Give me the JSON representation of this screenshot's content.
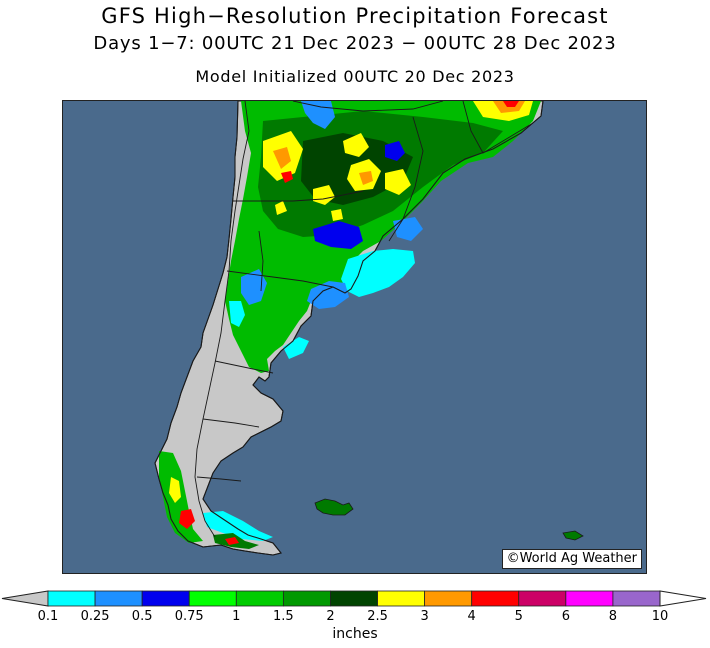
{
  "title": "GFS High−Resolution Precipitation Forecast",
  "subtitle": "Days 1−7: 00UTC 21 Dec 2023 − 00UTC 28 Dec 2023",
  "init_line": "Model Initialized 00UTC 20 Dec 2023",
  "credit": "©World Ag Weather",
  "legend": {
    "units": "inches",
    "ticks": [
      "0.1",
      "0.25",
      "0.5",
      "0.75",
      "1",
      "1.5",
      "2",
      "2.5",
      "3",
      "4",
      "5",
      "6",
      "8",
      "10"
    ],
    "colors": [
      "#00ffff",
      "#1e90ff",
      "#0000ee",
      "#00ff00",
      "#00cc00",
      "#009900",
      "#004400",
      "#ffff00",
      "#ff9900",
      "#ff0000",
      "#cc0066",
      "#ff00ff",
      "#9966cc"
    ],
    "below_min_color": "#c8c8c8",
    "above_max_color": "#ffffff"
  },
  "colors": {
    "ocean": "#4a6a8c",
    "land_dry": "#c8c8c8",
    "border": "#1a1a1a"
  },
  "icons": {
    "copyright": "copyright-symbol"
  }
}
